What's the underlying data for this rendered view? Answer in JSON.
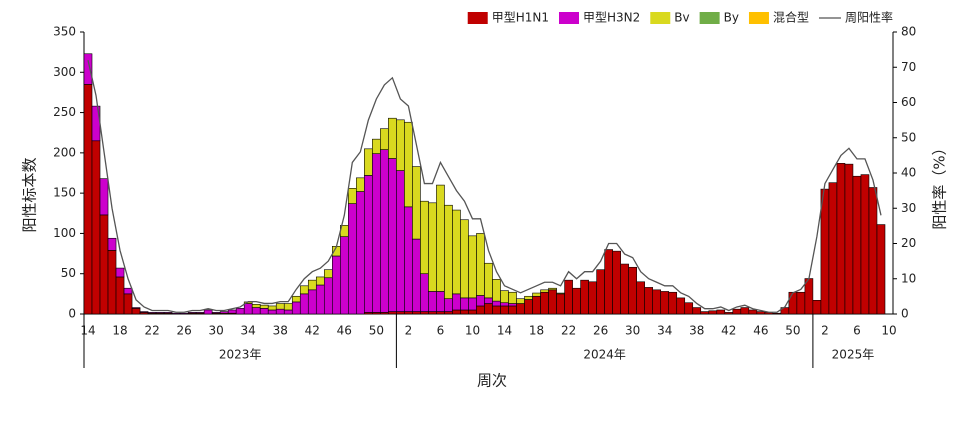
{
  "chart_data": {
    "type": "bar",
    "stacked": true,
    "x_label": "周次",
    "y_label": "阳性标本数",
    "y2_label": "阳性率（%）",
    "categories": [
      "14",
      null,
      null,
      null,
      "18",
      null,
      null,
      null,
      "22",
      null,
      null,
      null,
      "26",
      null,
      null,
      null,
      "30",
      null,
      null,
      null,
      "34",
      null,
      null,
      null,
      "38",
      null,
      null,
      null,
      "42",
      null,
      null,
      null,
      "46",
      null,
      null,
      null,
      "50",
      null,
      null,
      null,
      "2",
      null,
      null,
      null,
      "6",
      null,
      null,
      null,
      "10",
      null,
      null,
      null,
      "14",
      null,
      null,
      null,
      "18",
      null,
      null,
      null,
      "22",
      null,
      null,
      null,
      "26",
      null,
      null,
      null,
      "30",
      null,
      null,
      null,
      "34",
      null,
      null,
      null,
      "38",
      null,
      null,
      null,
      "42",
      null,
      null,
      null,
      "46",
      null,
      null,
      null,
      "50",
      null,
      null,
      null,
      "2",
      null,
      null,
      null,
      "6",
      null,
      null,
      null,
      "10"
    ],
    "groups": [
      {
        "label": "2023年",
        "count": 39
      },
      {
        "label": "2024年",
        "count": 52
      },
      {
        "label": "2025年",
        "count": 10
      }
    ],
    "series": [
      {
        "name": "甲型H1N1",
        "color": "#c00000",
        "values": [
          285,
          215,
          123,
          79,
          46,
          25,
          7,
          2,
          1,
          1,
          1,
          0,
          0,
          1,
          1,
          0,
          1,
          1,
          1,
          0,
          0,
          0,
          0,
          0,
          0,
          0,
          0,
          0,
          0,
          0,
          0,
          0,
          0,
          0,
          0,
          2,
          2,
          2,
          3,
          3,
          3,
          3,
          3,
          3,
          3,
          3,
          5,
          5,
          5,
          10,
          13,
          10,
          10,
          10,
          13,
          18,
          22,
          27,
          30,
          25,
          42,
          32,
          42,
          40,
          55,
          80,
          78,
          62,
          58,
          40,
          33,
          30,
          28,
          27,
          20,
          14,
          8,
          3,
          4,
          5,
          2,
          6,
          8,
          5,
          3,
          2,
          1,
          8,
          27,
          27,
          44,
          17,
          155,
          163,
          187,
          186,
          171,
          173,
          157,
          111,
          null
        ]
      },
      {
        "name": "甲型H3N2",
        "color": "#cc00cc",
        "values": [
          38,
          43,
          45,
          15,
          11,
          7,
          1,
          1,
          1,
          1,
          1,
          1,
          1,
          1,
          1,
          5,
          1,
          2,
          4,
          7,
          13,
          8,
          7,
          5,
          6,
          5,
          15,
          25,
          30,
          36,
          45,
          72,
          96,
          137,
          152,
          170,
          197,
          202,
          190,
          175,
          130,
          90,
          47,
          25,
          25,
          16,
          20,
          15,
          15,
          13,
          7,
          6,
          4,
          3,
          0,
          0,
          0,
          0,
          0,
          0,
          0,
          0,
          0,
          0,
          0,
          0,
          0,
          0,
          0,
          0,
          0,
          0,
          0,
          0,
          0,
          0,
          0,
          0,
          0,
          0,
          0,
          0,
          0,
          0,
          0,
          0,
          0,
          0,
          0,
          0,
          0,
          0,
          0,
          0,
          0,
          0,
          0,
          0,
          0,
          0,
          null
        ]
      },
      {
        "name": "Bv",
        "color": "#d9d91f",
        "values": [
          0,
          0,
          0,
          0,
          0,
          0,
          0,
          0,
          0,
          0,
          0,
          0,
          0,
          0,
          0,
          0,
          0,
          0,
          0,
          0,
          2,
          4,
          4,
          5,
          7,
          8,
          7,
          10,
          12,
          10,
          10,
          12,
          14,
          19,
          17,
          33,
          18,
          26,
          50,
          63,
          105,
          90,
          90,
          110,
          132,
          116,
          104,
          97,
          77,
          77,
          43,
          27,
          15,
          14,
          6,
          4,
          4,
          3,
          2,
          1,
          0,
          0,
          0,
          0,
          0,
          0,
          0,
          0,
          0,
          0,
          0,
          0,
          0,
          0,
          0,
          0,
          0,
          0,
          0,
          0,
          0,
          0,
          0,
          0,
          0,
          0,
          0,
          0,
          0,
          0,
          0,
          0,
          0,
          0,
          0,
          0,
          0,
          0,
          0,
          0,
          null
        ]
      },
      {
        "name": "By",
        "color": "#70ad47",
        "values": [
          0,
          0,
          0,
          0,
          0,
          0,
          0,
          0,
          0,
          0,
          0,
          0,
          0,
          0,
          0,
          0,
          0,
          0,
          0,
          0,
          0,
          0,
          0,
          0,
          0,
          0,
          0,
          0,
          0,
          0,
          0,
          0,
          0,
          0,
          0,
          0,
          0,
          0,
          0,
          0,
          0,
          0,
          0,
          0,
          0,
          0,
          0,
          0,
          0,
          0,
          0,
          0,
          0,
          0,
          0,
          0,
          0,
          0,
          0,
          0,
          0,
          0,
          0,
          0,
          0,
          0,
          0,
          0,
          0,
          0,
          0,
          0,
          0,
          0,
          0,
          0,
          0,
          0,
          0,
          0,
          0,
          0,
          0,
          0,
          0,
          0,
          0,
          0,
          0,
          0,
          0,
          0,
          0,
          0,
          0,
          0,
          0,
          0,
          0,
          0,
          null
        ]
      },
      {
        "name": "混合型",
        "color": "#ffc000",
        "values": [
          0,
          0,
          0,
          0,
          0,
          0,
          0,
          0,
          0,
          0,
          0,
          0,
          0,
          0,
          0,
          0,
          0,
          0,
          0,
          0,
          0,
          0,
          0,
          0,
          0,
          0,
          0,
          0,
          0,
          0,
          0,
          0,
          0,
          0,
          0,
          0,
          0,
          0,
          0,
          0,
          0,
          0,
          0,
          0,
          0,
          0,
          0,
          0,
          0,
          0,
          0,
          0,
          0,
          0,
          0,
          0,
          0,
          0,
          0,
          0,
          0,
          0,
          0,
          0,
          0,
          0,
          0,
          0,
          0,
          0,
          0,
          0,
          0,
          0,
          0,
          0,
          0,
          0,
          0,
          0,
          0,
          0,
          0,
          0,
          0,
          0,
          0,
          0,
          0,
          0,
          0,
          0,
          0,
          0,
          0,
          0,
          0,
          0,
          0,
          0,
          null
        ]
      },
      {
        "name": "周阳性率",
        "color": "#555555",
        "type": "line",
        "axis": "y2",
        "values": [
          72,
          62,
          46,
          30,
          18,
          10,
          4,
          2,
          1,
          1,
          1,
          0.5,
          0.5,
          1,
          1,
          1.5,
          1,
          1,
          1.5,
          2,
          3.5,
          3.5,
          3,
          3,
          3.5,
          3.5,
          7,
          10,
          12,
          13,
          15,
          19,
          28,
          43,
          46,
          55,
          61,
          65,
          67,
          61,
          59,
          48,
          37,
          37,
          43,
          39,
          35,
          32,
          27,
          27,
          18,
          12,
          8,
          7,
          6,
          7,
          8,
          9,
          9,
          8,
          12,
          10,
          12,
          12,
          15,
          20,
          20,
          17,
          16,
          12,
          10,
          9,
          8,
          8,
          6,
          5,
          3,
          1.5,
          1.5,
          2,
          1,
          2,
          2.5,
          1.5,
          1,
          0.5,
          0.5,
          2,
          6,
          7,
          10,
          22,
          37,
          41,
          45,
          47,
          44,
          44,
          38,
          28,
          null
        ]
      }
    ],
    "ylim": [
      0,
      350
    ],
    "yticks": [
      0,
      50,
      100,
      150,
      200,
      250,
      300,
      350
    ],
    "y2lim": [
      0,
      80
    ],
    "y2ticks": [
      0,
      10,
      20,
      30,
      40,
      50,
      60,
      70,
      80
    ]
  }
}
